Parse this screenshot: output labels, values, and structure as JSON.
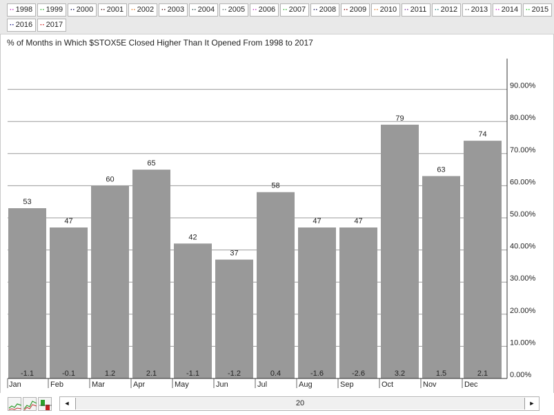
{
  "legend": {
    "years": [
      {
        "label": "1998",
        "color": "#c040c0"
      },
      {
        "label": "1999",
        "color": "#30b030"
      },
      {
        "label": "2000",
        "color": "#202060"
      },
      {
        "label": "2001",
        "color": "#502020"
      },
      {
        "label": "2002",
        "color": "#e08030"
      },
      {
        "label": "2003",
        "color": "#502020"
      },
      {
        "label": "2004",
        "color": "#305050"
      },
      {
        "label": "2005",
        "color": "#607070"
      },
      {
        "label": "2006",
        "color": "#c040c0"
      },
      {
        "label": "2007",
        "color": "#30b030"
      },
      {
        "label": "2008",
        "color": "#202060"
      },
      {
        "label": "2009",
        "color": "#8b1010"
      },
      {
        "label": "2010",
        "color": "#e08030"
      },
      {
        "label": "2011",
        "color": "#8040a0"
      },
      {
        "label": "2012",
        "color": "#308080"
      },
      {
        "label": "2013",
        "color": "#606060"
      },
      {
        "label": "2014",
        "color": "#d030d0"
      },
      {
        "label": "2015",
        "color": "#30c030"
      },
      {
        "label": "2016",
        "color": "#1a1a8a"
      },
      {
        "label": "2017",
        "color": "#d02020"
      }
    ]
  },
  "chart_data": {
    "type": "bar",
    "title": "% of Months in Which $STOX5E Closed Higher Than It Opened From 1998 to 2017",
    "categories": [
      "Jan",
      "Feb",
      "Mar",
      "Apr",
      "May",
      "Jun",
      "Jul",
      "Aug",
      "Sep",
      "Oct",
      "Nov",
      "Dec"
    ],
    "values": [
      53,
      47,
      60,
      65,
      42,
      37,
      58,
      47,
      47,
      79,
      63,
      74
    ],
    "value_labels": [
      "53",
      "47",
      "60",
      "65",
      "42",
      "37",
      "58",
      "47",
      "47",
      "79",
      "63",
      "74"
    ],
    "bottom_labels": [
      "-1.1",
      "-0.1",
      "1.2",
      "2.1",
      "-1.1",
      "-1.2",
      "0.4",
      "-1.6",
      "-2.6",
      "3.2",
      "1.5",
      "2.1"
    ],
    "y_ticks": [
      0,
      10,
      20,
      30,
      40,
      50,
      60,
      70,
      80,
      90
    ],
    "y_tick_labels": [
      "0.00%",
      "10.00%",
      "20.00%",
      "30.00%",
      "40.00%",
      "50.00%",
      "60.00%",
      "70.00%",
      "80.00%",
      "90.00%"
    ],
    "ylim": [
      0,
      100
    ],
    "y_axis_side": "right",
    "grid": true,
    "bar_color": "#999999",
    "xlabel": "",
    "ylabel": ""
  },
  "scroll": {
    "value": "20",
    "left_arrow": "◄",
    "right_arrow": "►"
  }
}
